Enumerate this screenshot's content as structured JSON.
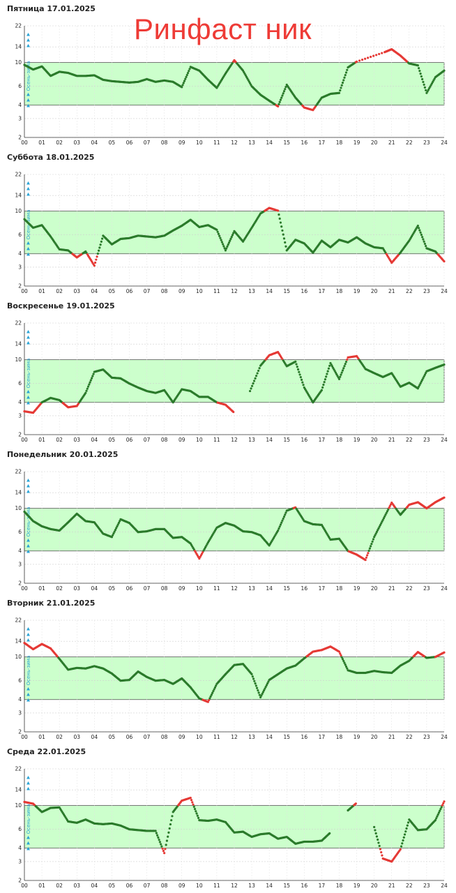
{
  "watermark": "Ринфаст ник",
  "season_label": "Осень-зима",
  "colors": {
    "in_range": "#2b7a2b",
    "out_of_range": "#e53935",
    "band": "#ccffcc",
    "band_border": "#555555",
    "season": "#29a3d6"
  },
  "chart_data": [
    {
      "type": "scatter",
      "title": "Пятница 17.01.2025",
      "y_scale": "log",
      "ylim": [
        2,
        22
      ],
      "y_ticks": [
        "2",
        "3",
        "4",
        "6",
        "10",
        "14",
        "22"
      ],
      "x_ticks": [
        "00",
        "01",
        "02",
        "03",
        "04",
        "05",
        "06",
        "07",
        "08",
        "09",
        "10",
        "11",
        "12",
        "13",
        "14",
        "15",
        "16",
        "17",
        "18",
        "19",
        "20",
        "21",
        "22",
        "23",
        "24"
      ],
      "target_range": [
        4,
        10
      ],
      "grid": true,
      "x": [
        0,
        0.5,
        1,
        1.5,
        2,
        2.5,
        3,
        3.5,
        4,
        4.5,
        5,
        5.5,
        6,
        6.5,
        7,
        7.5,
        8,
        8.5,
        9,
        9.5,
        10,
        10.5,
        11,
        11.5,
        12,
        12.5,
        13,
        13.5,
        14,
        14.5,
        15,
        15.5,
        16,
        16.5,
        17,
        17.5,
        18,
        18.5,
        19,
        20.6,
        21,
        21.5,
        22,
        22.5,
        23,
        23.5,
        24
      ],
      "y": [
        9.5,
        8.6,
        9.2,
        7.5,
        8.2,
        8.0,
        7.5,
        7.5,
        7.6,
        6.9,
        6.7,
        6.6,
        6.5,
        6.6,
        7.0,
        6.6,
        6.8,
        6.6,
        5.9,
        9.1,
        8.4,
        6.9,
        5.8,
        7.9,
        10.5,
        8.4,
        6.0,
        5.0,
        4.4,
        3.9,
        6.2,
        4.7,
        3.8,
        3.6,
        4.7,
        5.1,
        5.2,
        9.0,
        10.2,
        12.5,
        13.3,
        11.6,
        9.8,
        9.4,
        5.2,
        7.3,
        8.4
      ]
    },
    {
      "type": "scatter",
      "title": "Суббота 18.01.2025",
      "y_scale": "log",
      "ylim": [
        2,
        22
      ],
      "y_ticks": [
        "2",
        "3",
        "4",
        "6",
        "10",
        "14",
        "22"
      ],
      "x_ticks": [
        "00",
        "01",
        "02",
        "03",
        "04",
        "05",
        "06",
        "07",
        "08",
        "09",
        "10",
        "11",
        "12",
        "13",
        "14",
        "15",
        "16",
        "17",
        "18",
        "19",
        "20",
        "21",
        "22",
        "23",
        "24"
      ],
      "target_range": [
        4,
        10
      ],
      "grid": true,
      "x": [
        0,
        0.5,
        1,
        1.5,
        2,
        2.5,
        3,
        3.5,
        4,
        4.5,
        5,
        5.5,
        6,
        6.5,
        7,
        7.5,
        8,
        8.5,
        9,
        9.5,
        10,
        10.5,
        11,
        11.5,
        12,
        12.5,
        13,
        13.5,
        14,
        14.5,
        15,
        15.5,
        16,
        16.5,
        17,
        17.5,
        18,
        18.5,
        19,
        19.5,
        20,
        20.5,
        21,
        21.5,
        22,
        22.5,
        23,
        23.5,
        24
      ],
      "y": [
        8.4,
        7.0,
        7.4,
        5.8,
        4.4,
        4.3,
        3.7,
        4.2,
        3.1,
        5.9,
        4.9,
        5.5,
        5.6,
        5.9,
        5.8,
        5.7,
        5.9,
        6.6,
        7.3,
        8.3,
        7.1,
        7.4,
        6.7,
        4.3,
        6.5,
        5.2,
        7.0,
        9.5,
        10.7,
        10.1,
        4.3,
        5.4,
        5.0,
        4.1,
        5.3,
        4.6,
        5.4,
        5.1,
        5.7,
        5.0,
        4.6,
        4.5,
        3.3,
        4.1,
        5.3,
        7.3,
        4.5,
        4.2,
        3.4
      ]
    },
    {
      "type": "scatter",
      "title": "Воскресенье 19.01.2025",
      "y_scale": "log",
      "ylim": [
        2,
        22
      ],
      "y_ticks": [
        "2",
        "3",
        "4",
        "6",
        "10",
        "14",
        "22"
      ],
      "x_ticks": [
        "00",
        "01",
        "02",
        "03",
        "04",
        "05",
        "06",
        "07",
        "08",
        "09",
        "10",
        "11",
        "12",
        "13",
        "14",
        "15",
        "16",
        "17",
        "18",
        "19",
        "20",
        "21",
        "22",
        "23",
        "24"
      ],
      "target_range": [
        4,
        10
      ],
      "grid": true,
      "x": [
        0,
        0.5,
        1,
        1.5,
        2,
        2.5,
        3,
        3.5,
        4,
        4.5,
        5,
        5.5,
        6,
        6.5,
        7,
        7.5,
        8,
        8.5,
        9,
        9.5,
        10,
        10.5,
        11,
        11.5,
        12,
        12.5,
        12.9,
        13.5,
        14,
        14.5,
        15,
        15.5,
        16,
        16.5,
        17,
        17.5,
        18,
        18.5,
        19,
        19.5,
        20,
        20.5,
        21,
        21.5,
        22,
        22.5,
        23,
        23.5,
        24
      ],
      "y": [
        3.3,
        3.2,
        4.0,
        4.4,
        4.2,
        3.6,
        3.7,
        4.9,
        7.7,
        8.1,
        6.8,
        6.7,
        6.0,
        5.5,
        5.1,
        4.9,
        5.2,
        4.0,
        5.3,
        5.1,
        4.5,
        4.5,
        4.0,
        3.8,
        3.2,
        null,
        5.1,
        8.8,
        11.0,
        11.8,
        8.7,
        9.6,
        5.5,
        4.0,
        5.2,
        9.3,
        6.6,
        10.5,
        10.8,
        8.2,
        7.5,
        6.9,
        7.5,
        5.6,
        6.1,
        5.4,
        7.8,
        8.4,
        9.0
      ]
    },
    {
      "type": "scatter",
      "title": "Понедельник 20.01.2025",
      "y_scale": "log",
      "ylim": [
        2,
        22
      ],
      "y_ticks": [
        "2",
        "3",
        "4",
        "6",
        "10",
        "14",
        "22"
      ],
      "x_ticks": [
        "00",
        "01",
        "02",
        "03",
        "04",
        "05",
        "06",
        "07",
        "08",
        "09",
        "10",
        "11",
        "12",
        "13",
        "14",
        "15",
        "16",
        "17",
        "18",
        "19",
        "20",
        "21",
        "22",
        "23",
        "24"
      ],
      "target_range": [
        4,
        10
      ],
      "grid": true,
      "x": [
        0,
        0.5,
        1,
        1.5,
        2,
        2.5,
        3,
        3.5,
        4,
        4.5,
        5,
        5.5,
        6,
        6.5,
        7,
        7.5,
        8,
        8.5,
        9,
        9.5,
        10,
        10.5,
        11,
        11.5,
        12,
        12.5,
        13,
        13.5,
        14,
        14.5,
        15,
        15.5,
        16,
        16.5,
        17,
        17.5,
        18,
        18.5,
        19,
        19.5,
        20,
        20.5,
        21,
        21.5,
        22,
        22.5,
        23,
        23.5,
        24
      ],
      "y": [
        9.3,
        7.6,
        6.8,
        6.4,
        6.2,
        7.4,
        8.9,
        7.6,
        7.4,
        5.8,
        5.4,
        7.9,
        7.3,
        6.0,
        6.1,
        6.4,
        6.4,
        5.3,
        5.4,
        4.7,
        3.4,
        4.8,
        6.6,
        7.3,
        6.9,
        6.1,
        6.0,
        5.6,
        4.5,
        6.2,
        9.5,
        10.2,
        7.6,
        7.1,
        7.0,
        5.1,
        5.2,
        4.0,
        3.7,
        3.3,
        5.4,
        7.8,
        11.3,
        8.7,
        10.8,
        11.4,
        10.0,
        11.4,
        12.6
      ]
    },
    {
      "type": "scatter",
      "title": "Вторник 21.01.2025",
      "y_scale": "log",
      "ylim": [
        2,
        22
      ],
      "y_ticks": [
        "2",
        "3",
        "4",
        "6",
        "10",
        "14",
        "22"
      ],
      "x_ticks": [
        "00",
        "01",
        "02",
        "03",
        "04",
        "05",
        "06",
        "07",
        "08",
        "09",
        "10",
        "11",
        "12",
        "13",
        "14",
        "15",
        "16",
        "17",
        "18",
        "19",
        "20",
        "21",
        "22",
        "23",
        "24"
      ],
      "target_range": [
        4,
        10
      ],
      "grid": true,
      "x": [
        0,
        0.5,
        1,
        1.5,
        2,
        2.5,
        3,
        3.5,
        4,
        4.5,
        5,
        5.5,
        6,
        6.5,
        7,
        7.5,
        8,
        8.5,
        9,
        9.5,
        10,
        10.5,
        11,
        11.5,
        12,
        12.5,
        13,
        13.5,
        14,
        14.5,
        15,
        15.5,
        16,
        16.5,
        17,
        17.5,
        18,
        18.5,
        19,
        19.5,
        20,
        20.5,
        21,
        21.5,
        22,
        22.5,
        23,
        23.5,
        24
      ],
      "y": [
        13.5,
        11.8,
        13.2,
        12.0,
        9.6,
        7.6,
        7.9,
        7.8,
        8.2,
        7.8,
        7.0,
        6.0,
        6.1,
        7.3,
        6.5,
        6.0,
        6.1,
        5.6,
        6.3,
        5.2,
        4.1,
        3.8,
        5.6,
        6.9,
        8.4,
        8.6,
        6.9,
        4.2,
        6.1,
        6.9,
        7.8,
        8.3,
        9.7,
        11.2,
        11.6,
        12.5,
        11.2,
        7.5,
        7.1,
        7.1,
        7.4,
        7.2,
        7.1,
        8.3,
        9.2,
        11.1,
        9.8,
        10.0,
        11.0
      ]
    },
    {
      "type": "scatter",
      "title": "Среда 22.01.2025",
      "y_scale": "log",
      "ylim": [
        2,
        22
      ],
      "y_ticks": [
        "2",
        "3",
        "4",
        "6",
        "10",
        "14",
        "22"
      ],
      "x_ticks": [
        "00",
        "01",
        "02",
        "03",
        "04",
        "05",
        "06",
        "07",
        "08",
        "09",
        "10",
        "11",
        "12",
        "13",
        "14",
        "15",
        "16",
        "17",
        "18",
        "19",
        "20",
        "21",
        "22",
        "23",
        "24"
      ],
      "target_range": [
        4,
        10
      ],
      "grid": true,
      "x": [
        0,
        0.5,
        1,
        1.5,
        2,
        2.5,
        3,
        3.5,
        4,
        4.5,
        5,
        5.5,
        6,
        6.5,
        7,
        7.5,
        8,
        8.5,
        9,
        9.5,
        10,
        10.5,
        11,
        11.5,
        12,
        12.5,
        13,
        13.5,
        14,
        14.5,
        15,
        15.5,
        16,
        16.5,
        17,
        17.5,
        18,
        18.5,
        19,
        19.5,
        20,
        20.5,
        21,
        21.5,
        22,
        22.5,
        23,
        23.5,
        24
      ],
      "y": [
        10.8,
        10.4,
        8.7,
        9.5,
        9.6,
        7.1,
        6.9,
        7.4,
        6.8,
        6.7,
        6.8,
        6.5,
        6.0,
        5.9,
        5.8,
        5.8,
        3.6,
        8.7,
        11.1,
        11.8,
        7.3,
        7.2,
        7.4,
        7.0,
        5.6,
        5.7,
        5.1,
        5.4,
        5.5,
        4.9,
        5.1,
        4.4,
        4.6,
        4.6,
        4.7,
        5.6,
        null,
        9.0,
        10.6,
        null,
        6.3,
        3.2,
        3.0,
        3.9,
        7.4,
        5.9,
        6.0,
        7.3,
        10.9
      ]
    }
  ]
}
